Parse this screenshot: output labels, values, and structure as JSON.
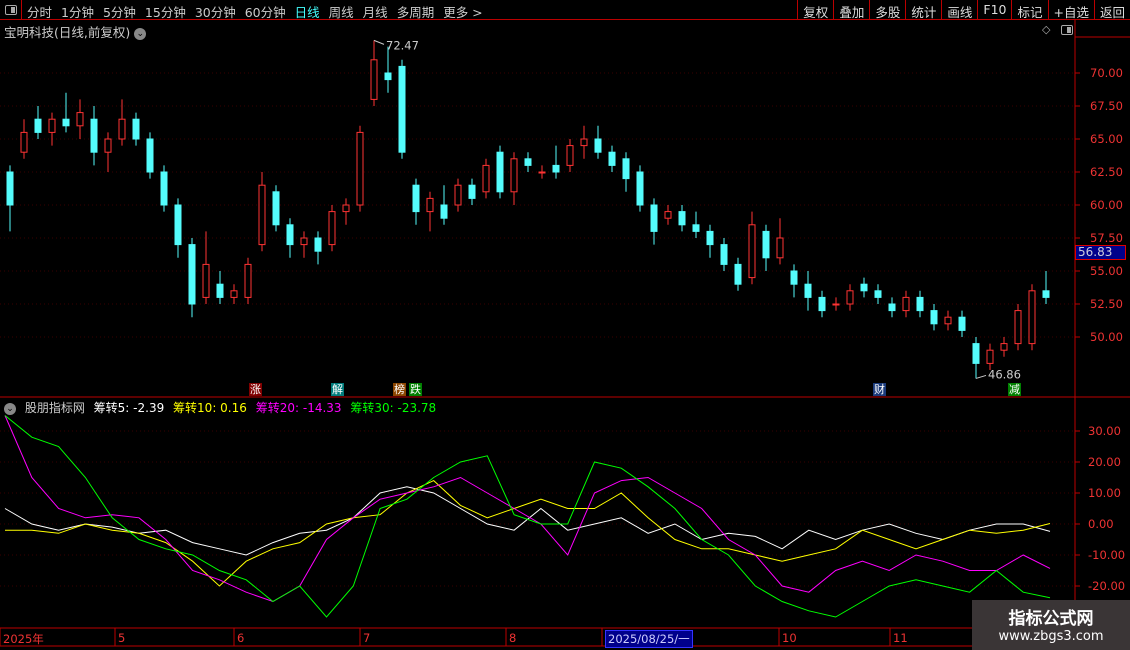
{
  "toolbar": {
    "periods": [
      "分时",
      "1分钟",
      "5分钟",
      "15分钟",
      "30分钟",
      "60分钟",
      "日线",
      "周线",
      "月线",
      "多周期",
      "更多 >"
    ],
    "active": "日线",
    "right_buttons": [
      "复权",
      "叠加",
      "多股",
      "统计",
      "画线",
      "F10",
      "标记",
      "+自选",
      "返回"
    ]
  },
  "stock": {
    "title": "宝明科技(日线,前复权)",
    "current_price_tag": "56.83",
    "high_label": "72.47",
    "low_label": "46.86"
  },
  "colors": {
    "up": "#ff3333",
    "down": "#54fcfc",
    "series5": "#ffffff",
    "series10": "#ffff00",
    "series20": "#ff00ff",
    "series30": "#00ff00",
    "grid": "#990000"
  },
  "price_axis": {
    "ticks": [
      "70.00",
      "67.50",
      "65.00",
      "62.50",
      "60.00",
      "57.50",
      "55.00",
      "52.50",
      "50.00"
    ]
  },
  "markers": [
    {
      "text": "涨",
      "color": "#800000"
    },
    {
      "text": "解",
      "color": "#007b7b"
    },
    {
      "text": "榜",
      "color": "#8b4500"
    },
    {
      "text": "跌",
      "color": "#008000"
    },
    {
      "text": "财",
      "color": "#1a3a7a"
    },
    {
      "text": "减",
      "color": "#008000"
    }
  ],
  "indicator": {
    "name": "股朋指标网",
    "labels": [
      "筹转5: -2.39",
      "筹转10: 0.16",
      "筹转20: -14.33",
      "筹转30: -23.78"
    ],
    "ticks": [
      "30.00",
      "20.00",
      "10.00",
      "0.00",
      "-10.00",
      "-20.00"
    ]
  },
  "date_axis": {
    "labels": [
      "2025年",
      "5",
      "6",
      "7",
      "8",
      "10",
      "11"
    ],
    "cursor": "2025/08/25/一"
  },
  "watermark": {
    "title": "指标公式网",
    "url": "www.zbgs3.com"
  },
  "chart_data": [
    {
      "type": "candlestick",
      "ylim": [
        46,
        73
      ],
      "ohlc": [
        [
          62.5,
          63,
          58,
          60
        ],
        [
          64,
          66.5,
          63.5,
          65.5
        ],
        [
          66.5,
          67.5,
          65,
          65.5
        ],
        [
          65.5,
          67,
          64.5,
          66.5
        ],
        [
          66.5,
          68.5,
          65.5,
          66
        ],
        [
          66,
          68,
          65,
          67
        ],
        [
          66.5,
          67.5,
          63,
          64
        ],
        [
          64,
          65.5,
          62.5,
          65
        ],
        [
          65,
          68,
          64.5,
          66.5
        ],
        [
          66.5,
          67,
          64.5,
          65
        ],
        [
          65,
          65.5,
          62,
          62.5
        ],
        [
          62.5,
          63,
          59.5,
          60
        ],
        [
          60,
          60.5,
          56,
          57
        ],
        [
          57,
          57.5,
          51.5,
          52.5
        ],
        [
          53,
          58,
          52.5,
          55.5
        ],
        [
          54,
          55,
          52.5,
          53
        ],
        [
          53,
          54,
          52.5,
          53.5
        ],
        [
          53,
          56,
          52.5,
          55.5
        ],
        [
          57,
          62.5,
          56.5,
          61.5
        ],
        [
          61,
          61.5,
          58,
          58.5
        ],
        [
          58.5,
          59,
          56,
          57
        ],
        [
          57,
          58,
          56,
          57.5
        ],
        [
          57.5,
          58,
          55.5,
          56.5
        ],
        [
          57,
          60,
          56.5,
          59.5
        ],
        [
          59.5,
          60.5,
          58.5,
          60
        ],
        [
          60,
          66,
          59.5,
          65.5
        ],
        [
          68,
          72.47,
          67.5,
          71
        ],
        [
          70,
          72,
          68.5,
          69.5
        ],
        [
          70.5,
          71,
          63.5,
          64
        ],
        [
          61.5,
          62,
          58.5,
          59.5
        ],
        [
          59.5,
          61,
          58,
          60.5
        ],
        [
          60,
          61.5,
          58.5,
          59
        ],
        [
          60,
          62,
          59.5,
          61.5
        ],
        [
          61.5,
          62,
          60,
          60.5
        ],
        [
          61,
          63.5,
          60.5,
          63
        ],
        [
          64,
          64.5,
          60.5,
          61
        ],
        [
          61,
          64,
          60,
          63.5
        ],
        [
          63.5,
          64,
          62.5,
          63
        ],
        [
          62.5,
          63,
          62,
          62.5
        ],
        [
          63,
          64.5,
          62,
          62.5
        ],
        [
          63,
          65,
          62.5,
          64.5
        ],
        [
          64.5,
          66,
          63.5,
          65
        ],
        [
          65,
          66,
          63.5,
          64
        ],
        [
          64,
          64.5,
          62.5,
          63
        ],
        [
          63.5,
          64,
          61,
          62
        ],
        [
          62.5,
          63,
          59.5,
          60
        ],
        [
          60,
          60.5,
          57,
          58
        ],
        [
          59,
          60,
          58.5,
          59.5
        ],
        [
          59.5,
          60,
          58,
          58.5
        ],
        [
          58.5,
          59.5,
          57.5,
          58
        ],
        [
          58,
          58.5,
          56,
          57
        ],
        [
          57,
          57.5,
          55,
          55.5
        ],
        [
          55.5,
          56,
          53.5,
          54
        ],
        [
          54.5,
          59.5,
          54,
          58.5
        ],
        [
          58,
          58.5,
          55,
          56
        ],
        [
          56,
          59,
          55.5,
          57.5
        ],
        [
          55,
          55.5,
          53,
          54
        ],
        [
          54,
          55,
          52,
          53
        ],
        [
          53,
          53.5,
          51.5,
          52
        ],
        [
          52.5,
          53,
          52,
          52.5
        ],
        [
          52.5,
          54,
          52,
          53.5
        ],
        [
          54,
          54.5,
          53,
          53.5
        ],
        [
          53.5,
          54,
          52.5,
          53
        ],
        [
          52.5,
          53,
          51.5,
          52
        ],
        [
          52,
          53.5,
          51.5,
          53
        ],
        [
          53,
          53.5,
          51.5,
          52
        ],
        [
          52,
          52.5,
          50.5,
          51
        ],
        [
          51,
          52,
          50.5,
          51.5
        ],
        [
          51.5,
          52,
          50,
          50.5
        ],
        [
          49.5,
          50,
          46.86,
          48
        ],
        [
          48,
          49.5,
          47.5,
          49
        ],
        [
          49,
          50,
          48.5,
          49.5
        ],
        [
          49.5,
          52.5,
          49,
          52
        ],
        [
          49.5,
          54,
          49,
          53.5
        ],
        [
          53.5,
          55,
          52.5,
          53
        ]
      ]
    },
    {
      "type": "line",
      "ylim": [
        -32,
        37
      ],
      "series": [
        {
          "name": "筹转5",
          "values": [
            5,
            0,
            -2,
            0,
            -1,
            -3,
            -2,
            -6,
            -8,
            -10,
            -6,
            -3,
            -2,
            2,
            10,
            12,
            10,
            5,
            0,
            -2,
            5,
            -2,
            0,
            2,
            -3,
            0,
            -5,
            -3,
            -4,
            -8,
            -2,
            -5,
            -2,
            0,
            -3,
            -5,
            -2,
            0,
            0,
            -2.39
          ]
        },
        {
          "name": "筹转10",
          "values": [
            -2,
            -2,
            -3,
            0,
            -2,
            -3,
            -6,
            -12,
            -20,
            -12,
            -8,
            -6,
            0,
            2,
            3,
            10,
            14,
            6,
            2,
            5,
            8,
            5,
            5,
            10,
            2,
            -5,
            -8,
            -8,
            -10,
            -12,
            -10,
            -8,
            -2,
            -5,
            -8,
            -5,
            -2,
            -3,
            -2,
            0.16
          ]
        },
        {
          "name": "筹转20",
          "values": [
            35,
            15,
            5,
            2,
            3,
            2,
            -5,
            -15,
            -18,
            -22,
            -25,
            -20,
            -5,
            2,
            8,
            10,
            12,
            15,
            10,
            5,
            0,
            -10,
            10,
            14,
            15,
            10,
            5,
            -5,
            -10,
            -20,
            -22,
            -15,
            -12,
            -15,
            -10,
            -12,
            -15,
            -15,
            -10,
            -14.33
          ]
        },
        {
          "name": "筹转30",
          "values": [
            35,
            28,
            25,
            15,
            2,
            -5,
            -8,
            -10,
            -15,
            -18,
            -25,
            -20,
            -30,
            -20,
            5,
            8,
            15,
            20,
            22,
            3,
            0,
            0,
            20,
            18,
            12,
            5,
            -5,
            -10,
            -20,
            -25,
            -28,
            -30,
            -25,
            -20,
            -18,
            -20,
            -22,
            -15,
            -22,
            -23.78
          ]
        }
      ]
    }
  ]
}
